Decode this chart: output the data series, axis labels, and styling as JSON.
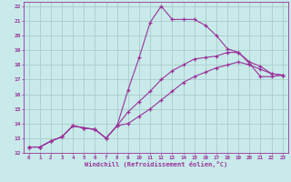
{
  "xlabel": "Windchill (Refroidissement éolien,°C)",
  "background_color": "#c8eaea",
  "grid_color": "#aacccc",
  "line_color": "#993399",
  "xlim": [
    -0.5,
    23.5
  ],
  "ylim": [
    12,
    22.3
  ],
  "xticks": [
    0,
    1,
    2,
    3,
    4,
    5,
    6,
    7,
    8,
    9,
    10,
    11,
    12,
    13,
    14,
    15,
    16,
    17,
    18,
    19,
    20,
    21,
    22,
    23
  ],
  "yticks": [
    12,
    13,
    14,
    15,
    16,
    17,
    18,
    19,
    20,
    21,
    22
  ],
  "lines": [
    {
      "x": [
        0,
        1,
        2,
        3,
        4,
        5,
        6,
        7,
        8,
        9,
        10,
        11,
        12,
        13,
        14,
        15,
        16,
        17,
        18,
        19,
        20,
        21,
        22,
        23
      ],
      "y": [
        12.4,
        12.4,
        12.8,
        13.1,
        13.85,
        13.7,
        13.6,
        13.0,
        13.85,
        16.3,
        18.5,
        20.9,
        22.0,
        21.1,
        21.1,
        21.1,
        20.7,
        20.0,
        19.1,
        18.85,
        18.1,
        17.2,
        17.2,
        17.3
      ]
    },
    {
      "x": [
        0,
        1,
        2,
        3,
        4,
        5,
        6,
        7,
        8,
        9,
        10,
        11,
        12,
        13,
        14,
        15,
        16,
        17,
        18,
        19,
        20,
        21,
        22,
        23
      ],
      "y": [
        12.4,
        12.4,
        12.8,
        13.1,
        13.85,
        13.7,
        13.6,
        13.0,
        13.85,
        14.8,
        15.5,
        16.2,
        17.0,
        17.6,
        18.0,
        18.4,
        18.5,
        18.6,
        18.85,
        18.85,
        18.2,
        17.9,
        17.4,
        17.3
      ]
    },
    {
      "x": [
        0,
        1,
        2,
        3,
        4,
        5,
        6,
        7,
        8,
        9,
        10,
        11,
        12,
        13,
        14,
        15,
        16,
        17,
        18,
        19,
        20,
        21,
        22,
        23
      ],
      "y": [
        12.4,
        12.4,
        12.8,
        13.1,
        13.85,
        13.7,
        13.6,
        13.0,
        13.85,
        14.0,
        14.5,
        15.0,
        15.6,
        16.2,
        16.8,
        17.2,
        17.5,
        17.8,
        18.0,
        18.2,
        18.0,
        17.7,
        17.4,
        17.3
      ]
    }
  ]
}
